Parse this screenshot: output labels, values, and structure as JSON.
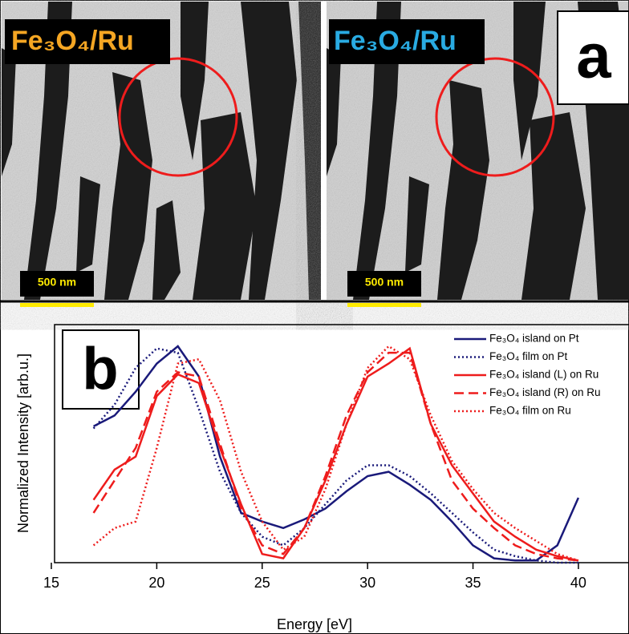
{
  "panel_a": {
    "labels": [
      "Fe₃O₄/Ru",
      "Fe₃O₄/Ru"
    ],
    "scale_bars": [
      "500 nm",
      "500 nm"
    ],
    "panel_label": "a"
  },
  "chart_data": {
    "type": "line",
    "panel_label": "b",
    "x_label": "Energy [eV]",
    "y_label": "Normalized Intensity [arb.u.]",
    "xlim": [
      15,
      42.4
    ],
    "ylim": [
      0,
      1.1
    ],
    "xticks": [
      15,
      20,
      25,
      30,
      35,
      40
    ],
    "x": [
      17,
      18,
      19,
      20,
      21,
      22,
      23,
      24,
      25,
      26,
      27,
      28,
      29,
      30,
      31,
      32,
      33,
      34,
      35,
      36,
      37,
      38,
      39,
      40
    ],
    "series": [
      {
        "name": "Fe₃O₄ island on Pt",
        "color": "#1a1a7a",
        "style": "solid",
        "values": [
          0.63,
          0.68,
          0.79,
          0.92,
          1.0,
          0.86,
          0.49,
          0.23,
          0.19,
          0.16,
          0.2,
          0.25,
          0.33,
          0.4,
          0.42,
          0.36,
          0.29,
          0.19,
          0.08,
          0.02,
          0.01,
          0.01,
          0.08,
          0.3
        ]
      },
      {
        "name": "Fe₃O₄ film on Pt",
        "color": "#1a1a7a",
        "style": "dotted",
        "values": [
          0.62,
          0.73,
          0.9,
          0.99,
          0.97,
          0.71,
          0.42,
          0.23,
          0.12,
          0.08,
          0.16,
          0.27,
          0.38,
          0.45,
          0.45,
          0.4,
          0.32,
          0.23,
          0.14,
          0.06,
          0.03,
          0.01,
          0.0,
          0.0
        ]
      },
      {
        "name": "Fe₃O₄ island (L) on Ru",
        "color": "#ee1c1c",
        "style": "solid",
        "values": [
          0.29,
          0.43,
          0.49,
          0.77,
          0.87,
          0.83,
          0.53,
          0.27,
          0.04,
          0.02,
          0.16,
          0.38,
          0.64,
          0.86,
          0.92,
          0.99,
          0.64,
          0.45,
          0.32,
          0.19,
          0.12,
          0.06,
          0.03,
          0.01
        ]
      },
      {
        "name": "Fe₃O₄ island (R) on Ru",
        "color": "#ee1c1c",
        "style": "dashed",
        "values": [
          0.23,
          0.38,
          0.53,
          0.79,
          0.88,
          0.86,
          0.55,
          0.25,
          0.08,
          0.04,
          0.16,
          0.4,
          0.68,
          0.88,
          0.97,
          0.97,
          0.64,
          0.38,
          0.25,
          0.16,
          0.08,
          0.04,
          0.02,
          0.01
        ]
      },
      {
        "name": "Fe₃O₄ film on Ru",
        "color": "#ee1c1c",
        "style": "dotted",
        "values": [
          0.08,
          0.16,
          0.19,
          0.53,
          0.92,
          0.94,
          0.75,
          0.42,
          0.19,
          0.06,
          0.12,
          0.34,
          0.64,
          0.9,
          1.0,
          0.94,
          0.68,
          0.47,
          0.34,
          0.23,
          0.16,
          0.1,
          0.04,
          0.01
        ]
      }
    ]
  }
}
